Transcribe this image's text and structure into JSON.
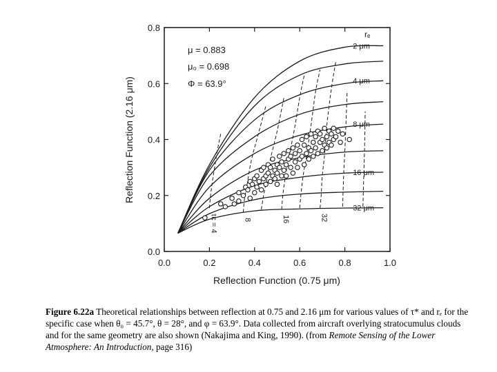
{
  "chart_data": {
    "type": "line",
    "xlabel": "Reflection Function (0.75 μm)",
    "ylabel": "Reflection Function (2.16 μm)",
    "xlim": [
      0.0,
      1.0
    ],
    "ylim": [
      0.0,
      0.8
    ],
    "xticks": [
      "0.0",
      "0.2",
      "0.4",
      "0.6",
      "0.8",
      "1.0"
    ],
    "yticks": [
      "0.0",
      "0.2",
      "0.4",
      "0.6",
      "0.8"
    ],
    "grid": false,
    "annotations": {
      "mu": "μ  = 0.883",
      "mu0": "μ₀ = 0.698",
      "phi": "Φ  = 63.9°",
      "re_header": "rₑ"
    },
    "re_curves": [
      {
        "label": "2 μm",
        "x": [
          0.06,
          0.2,
          0.4,
          0.6,
          0.8,
          0.97
        ],
        "y": [
          0.065,
          0.31,
          0.55,
          0.68,
          0.73,
          0.735
        ]
      },
      {
        "label": "",
        "x": [
          0.06,
          0.2,
          0.4,
          0.6,
          0.8,
          0.97
        ],
        "y": [
          0.065,
          0.3,
          0.52,
          0.63,
          0.67,
          0.68
        ]
      },
      {
        "label": "4 μm",
        "x": [
          0.06,
          0.2,
          0.4,
          0.6,
          0.8,
          0.97
        ],
        "y": [
          0.065,
          0.29,
          0.47,
          0.56,
          0.6,
          0.61
        ]
      },
      {
        "label": "",
        "x": [
          0.06,
          0.2,
          0.4,
          0.6,
          0.8,
          0.97
        ],
        "y": [
          0.065,
          0.27,
          0.41,
          0.49,
          0.525,
          0.535
        ]
      },
      {
        "label": "8 μm",
        "x": [
          0.06,
          0.2,
          0.4,
          0.6,
          0.8,
          0.97
        ],
        "y": [
          0.065,
          0.23,
          0.35,
          0.415,
          0.445,
          0.455
        ]
      },
      {
        "label": "",
        "x": [
          0.06,
          0.2,
          0.4,
          0.6,
          0.8,
          0.97
        ],
        "y": [
          0.065,
          0.19,
          0.29,
          0.335,
          0.355,
          0.36
        ]
      },
      {
        "label": "16 μm",
        "x": [
          0.06,
          0.2,
          0.4,
          0.6,
          0.8,
          0.97
        ],
        "y": [
          0.065,
          0.16,
          0.235,
          0.265,
          0.28,
          0.283
        ]
      },
      {
        "label": "",
        "x": [
          0.06,
          0.2,
          0.4,
          0.6,
          0.8,
          0.97
        ],
        "y": [
          0.065,
          0.135,
          0.185,
          0.205,
          0.212,
          0.215
        ]
      },
      {
        "label": "32 μm",
        "x": [
          0.06,
          0.2,
          0.4,
          0.6,
          0.8,
          0.97
        ],
        "y": [
          0.065,
          0.115,
          0.145,
          0.152,
          0.155,
          0.156
        ]
      }
    ],
    "tau_lines": [
      {
        "label": "τc = 4",
        "x": [
          0.2,
          0.205,
          0.215,
          0.225,
          0.235,
          0.25
        ],
        "y": [
          0.155,
          0.2,
          0.26,
          0.31,
          0.36,
          0.42
        ]
      },
      {
        "label": "8",
        "x": [
          0.35,
          0.355,
          0.365,
          0.375,
          0.39,
          0.42,
          0.45
        ],
        "y": [
          0.14,
          0.185,
          0.23,
          0.28,
          0.34,
          0.43,
          0.52
        ]
      },
      {
        "label": "",
        "x": [
          0.43,
          0.44,
          0.455,
          0.47,
          0.5,
          0.53
        ],
        "y": [
          0.15,
          0.2,
          0.26,
          0.33,
          0.43,
          0.55
        ]
      },
      {
        "label": "16",
        "x": [
          0.52,
          0.525,
          0.535,
          0.55,
          0.575,
          0.6,
          0.62
        ],
        "y": [
          0.15,
          0.2,
          0.26,
          0.33,
          0.43,
          0.55,
          0.63
        ]
      },
      {
        "label": "",
        "x": [
          0.6,
          0.605,
          0.615,
          0.63,
          0.65,
          0.67,
          0.69
        ],
        "y": [
          0.155,
          0.2,
          0.27,
          0.34,
          0.45,
          0.57,
          0.65
        ]
      },
      {
        "label": "32",
        "x": [
          0.69,
          0.695,
          0.7,
          0.71,
          0.72,
          0.74,
          0.76
        ],
        "y": [
          0.155,
          0.2,
          0.27,
          0.345,
          0.45,
          0.58,
          0.68
        ]
      },
      {
        "label": "",
        "x": [
          0.79,
          0.792,
          0.795,
          0.8,
          0.805,
          0.81
        ],
        "y": [
          0.16,
          0.21,
          0.28,
          0.36,
          0.46,
          0.57
        ]
      },
      {
        "label": "",
        "x": [
          0.88,
          0.882,
          0.885,
          0.888,
          0.89
        ],
        "y": [
          0.16,
          0.22,
          0.3,
          0.4,
          0.5
        ]
      }
    ],
    "observations": {
      "x": [
        0.18,
        0.25,
        0.27,
        0.3,
        0.31,
        0.33,
        0.33,
        0.35,
        0.36,
        0.37,
        0.38,
        0.38,
        0.39,
        0.4,
        0.4,
        0.41,
        0.41,
        0.42,
        0.43,
        0.43,
        0.44,
        0.44,
        0.45,
        0.45,
        0.46,
        0.46,
        0.47,
        0.47,
        0.48,
        0.48,
        0.49,
        0.49,
        0.5,
        0.5,
        0.5,
        0.51,
        0.51,
        0.52,
        0.52,
        0.53,
        0.53,
        0.54,
        0.54,
        0.55,
        0.55,
        0.56,
        0.56,
        0.57,
        0.57,
        0.58,
        0.58,
        0.59,
        0.59,
        0.6,
        0.6,
        0.61,
        0.61,
        0.62,
        0.62,
        0.63,
        0.63,
        0.64,
        0.64,
        0.65,
        0.65,
        0.66,
        0.66,
        0.67,
        0.67,
        0.68,
        0.68,
        0.69,
        0.69,
        0.7,
        0.7,
        0.71,
        0.71,
        0.72,
        0.72,
        0.73,
        0.73,
        0.74,
        0.74,
        0.75,
        0.75,
        0.76,
        0.77,
        0.78,
        0.79,
        0.82
      ],
      "y": [
        0.12,
        0.17,
        0.16,
        0.19,
        0.17,
        0.21,
        0.18,
        0.2,
        0.23,
        0.22,
        0.19,
        0.25,
        0.24,
        0.21,
        0.26,
        0.23,
        0.27,
        0.25,
        0.22,
        0.29,
        0.26,
        0.3,
        0.27,
        0.24,
        0.31,
        0.28,
        0.25,
        0.3,
        0.27,
        0.33,
        0.29,
        0.26,
        0.31,
        0.28,
        0.24,
        0.3,
        0.34,
        0.27,
        0.32,
        0.29,
        0.35,
        0.31,
        0.27,
        0.33,
        0.36,
        0.3,
        0.34,
        0.28,
        0.37,
        0.32,
        0.35,
        0.3,
        0.38,
        0.33,
        0.36,
        0.4,
        0.34,
        0.31,
        0.38,
        0.35,
        0.41,
        0.33,
        0.37,
        0.42,
        0.36,
        0.39,
        0.34,
        0.41,
        0.37,
        0.43,
        0.35,
        0.39,
        0.42,
        0.36,
        0.4,
        0.44,
        0.38,
        0.41,
        0.37,
        0.43,
        0.39,
        0.42,
        0.38,
        0.44,
        0.4,
        0.41,
        0.43,
        0.39,
        0.42,
        0.4
      ]
    }
  },
  "caption": {
    "label": "Figure 6.22a",
    "text_1": "  Theoretical relationships between reflection at 0.75 and 2.16 μm for various values of τ* and rₑ for the specific case when θ₀ = 45.7°, θ = 28°, and φ = 63.9°.  Data collected from aircraft overlying stratocumulus clouds and for the same geometry are also shown (Nakajima and King, 1990). (from ",
    "book_title": "Remote Sensing of the Lower Atmosphere: An Introduction",
    "text_2": ", page 316)"
  },
  "colors": {
    "ink": "#1a1a1a",
    "background": "#ffffff"
  }
}
